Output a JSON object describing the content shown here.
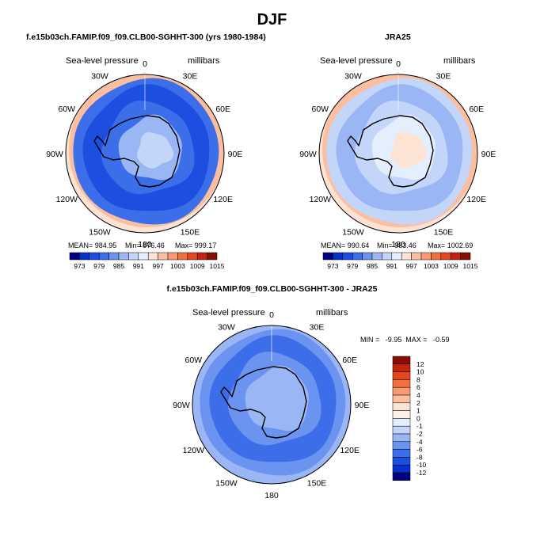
{
  "title": "DJF",
  "panels": [
    {
      "id": "model",
      "subtitle": "f.e15b03ch.FAMIP.f09_f09.CLB00-SGHHT-300 (yrs 1980-1984)",
      "left_label": "Sea-level pressure",
      "right_label": "millibars",
      "stats": {
        "mean": "MEAN= 984.95",
        "min": "Min= 976.46",
        "max": "Max= 999.17"
      }
    },
    {
      "id": "obs",
      "subtitle": "JRA25",
      "left_label": "Sea-level pressure",
      "right_label": "millibars",
      "stats": {
        "mean": "MEAN= 990.64",
        "min": "Min= 983.46",
        "max": "Max= 1002.69"
      }
    },
    {
      "id": "diff",
      "subtitle": "f.e15b03ch.FAMIP.f09_f09.CLB00-SGHHT-300 - JRA25",
      "left_label": "Sea-level pressure",
      "right_label": "millibars",
      "minmax": "MIN =   -9.95  MAX =   -0.59"
    }
  ],
  "lon_labels": [
    "0",
    "30E",
    "60E",
    "90E",
    "120E",
    "150E",
    "180",
    "150W",
    "120W",
    "90W",
    "60W",
    "30W"
  ],
  "horizontal_colorbar": {
    "labels": [
      "973",
      "979",
      "985",
      "991",
      "997",
      "1003",
      "1009",
      "1015"
    ],
    "colors": [
      "#00007f",
      "#0a2fc8",
      "#1c4fe0",
      "#3d6ee9",
      "#6b93f0",
      "#9ab6f5",
      "#c3d6f9",
      "#e5eefc",
      "#fde3d4",
      "#fbbfa0",
      "#f89a73",
      "#f1703f",
      "#e6461d",
      "#c22410",
      "#8a0c04"
    ]
  },
  "vertical_colorbar": {
    "labels": [
      "12",
      "10",
      "8",
      "6",
      "4",
      "2",
      "1",
      "0",
      "-1",
      "-2",
      "-4",
      "-6",
      "-8",
      "-10",
      "-12"
    ],
    "colors": [
      "#8a0c04",
      "#c22410",
      "#e6461d",
      "#f1703f",
      "#f89a73",
      "#fbbfa0",
      "#fde3d4",
      "#fdf1e8",
      "#e5eefc",
      "#c3d6f9",
      "#9ab6f5",
      "#6b93f0",
      "#3d6ee9",
      "#1c4fe0",
      "#0a2fc8",
      "#00007f"
    ]
  }
}
